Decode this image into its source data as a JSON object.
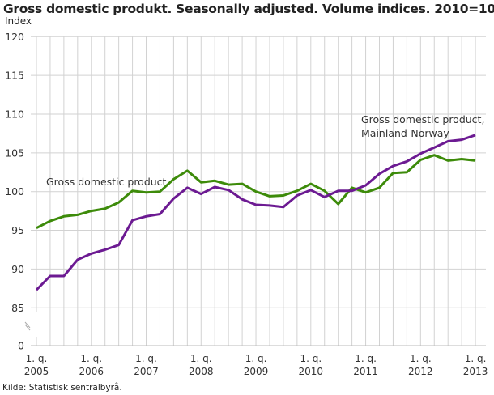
{
  "chart_data": {
    "type": "line",
    "title": "Gross domestic produkt. Seasonally adjusted. Volume indices. 2010=10",
    "ylabel": "Index",
    "xlabel": "",
    "source": "Kilde: Statistisk sentralbyrå.",
    "yticks": [
      0,
      85,
      90,
      95,
      100,
      105,
      110,
      115,
      120
    ],
    "ylim": [
      85,
      120
    ],
    "y_axis_break": true,
    "grid": true,
    "x_start": "2005Q1",
    "x_end": "2013Q1",
    "xtick_labels": [
      {
        "q": "1. q.",
        "year": "2005"
      },
      {
        "q": "1. q.",
        "year": "2006"
      },
      {
        "q": "1. q.",
        "year": "2007"
      },
      {
        "q": "1. q.",
        "year": "2008"
      },
      {
        "q": "1. q.",
        "year": "2009"
      },
      {
        "q": "1. q.",
        "year": "2010"
      },
      {
        "q": "1. q.",
        "year": "2011"
      },
      {
        "q": "1. q.",
        "year": "2012"
      },
      {
        "q": "1. q.",
        "year": "2013"
      }
    ],
    "series": [
      {
        "name": "Gross domestic product",
        "color": "#3d8b0a",
        "values": [
          95.3,
          96.2,
          96.8,
          97.0,
          97.5,
          97.8,
          98.6,
          100.1,
          99.9,
          100.0,
          101.6,
          102.7,
          101.2,
          101.4,
          100.9,
          101.0,
          100.0,
          99.4,
          99.5,
          100.1,
          101.0,
          100.1,
          98.4,
          100.5,
          99.9,
          100.5,
          102.4,
          102.5,
          104.1,
          104.7,
          104.0,
          104.2,
          104.0
        ]
      },
      {
        "name": "Gross domestic product, Mainland-Norway",
        "name_lines": [
          "Gross domestic product,",
          "Mainland-Norway"
        ],
        "color": "#6c1a92",
        "values": [
          87.3,
          89.1,
          89.1,
          91.2,
          92.0,
          92.5,
          93.1,
          96.3,
          96.8,
          97.1,
          99.1,
          100.5,
          99.7,
          100.6,
          100.2,
          99.0,
          98.3,
          98.2,
          98.0,
          99.5,
          100.2,
          99.3,
          100.1,
          100.1,
          100.8,
          102.3,
          103.3,
          103.9,
          104.9,
          105.7,
          106.5,
          106.7,
          107.3
        ]
      }
    ]
  }
}
